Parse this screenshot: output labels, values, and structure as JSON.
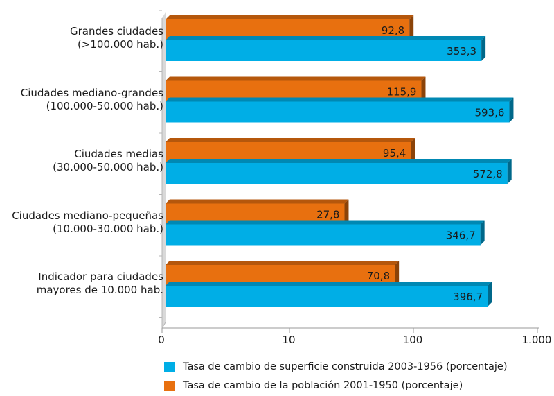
{
  "chart_data": {
    "type": "bar",
    "orientation": "horizontal",
    "x_scale": "log",
    "categories": [
      [
        "Grandes ciudades",
        "(>100.000 hab.)"
      ],
      [
        "Ciudades mediano-grandes",
        "(100.000-50.000 hab.)"
      ],
      [
        "Ciudades medias",
        "(30.000-50.000 hab.)"
      ],
      [
        "Ciudades mediano-pequeñas",
        "(10.000-30.000  hab.)"
      ],
      [
        "Indicador para ciudades",
        "mayores de 10.000 hab."
      ]
    ],
    "series": [
      {
        "name": "Tasa de cambio de la población 2001-1950 (porcentaje)",
        "color": "#e8700f",
        "values": [
          92.8,
          115.9,
          95.4,
          27.8,
          70.8
        ],
        "labels": [
          "92,8",
          "115,9",
          "95,4",
          "27,8",
          "70,8"
        ]
      },
      {
        "name": "Tasa de cambio de superficie construida 2003-1956 (porcentaje)",
        "color": "#00aee6",
        "values": [
          353.3,
          593.6,
          572.8,
          346.7,
          396.7
        ],
        "labels": [
          "353,3",
          "593,6",
          "572,8",
          "346,7",
          "396,7"
        ]
      }
    ],
    "x_ticks": [
      {
        "value": 1,
        "label": "0"
      },
      {
        "value": 10,
        "label": "10"
      },
      {
        "value": 100,
        "label": "100"
      },
      {
        "value": 1000,
        "label": "1.000"
      }
    ],
    "xlim": [
      1,
      1000
    ],
    "grid": false,
    "legend_position": "bottom"
  }
}
